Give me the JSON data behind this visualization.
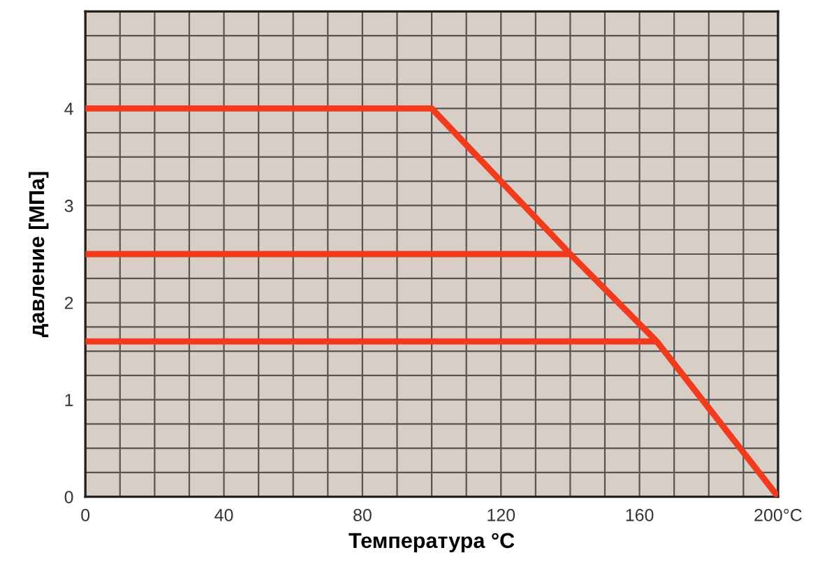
{
  "chart_data": {
    "type": "line",
    "xlabel": "Температура °C",
    "ylabel": "давление [МПа]",
    "series": [
      {
        "color": "#f23a1c",
        "x": [
          0,
          100,
          140,
          165,
          200
        ],
        "values": [
          4,
          4,
          2.5,
          1.6,
          0
        ]
      },
      {
        "color": "#f23a1c",
        "x": [
          0,
          140
        ],
        "values": [
          2.5,
          2.5
        ]
      },
      {
        "color": "#f23a1c",
        "x": [
          0,
          165
        ],
        "values": [
          1.6,
          1.6
        ]
      }
    ],
    "xlim": [
      0,
      200
    ],
    "ylim": [
      0,
      5
    ],
    "xticks": [
      0,
      40,
      80,
      120,
      160,
      {
        "value": 200,
        "label": "200°C"
      }
    ],
    "yticks": [
      0,
      1,
      2,
      3,
      4
    ],
    "grid": true,
    "legend": false,
    "marker": "none",
    "line_style": "solid"
  }
}
